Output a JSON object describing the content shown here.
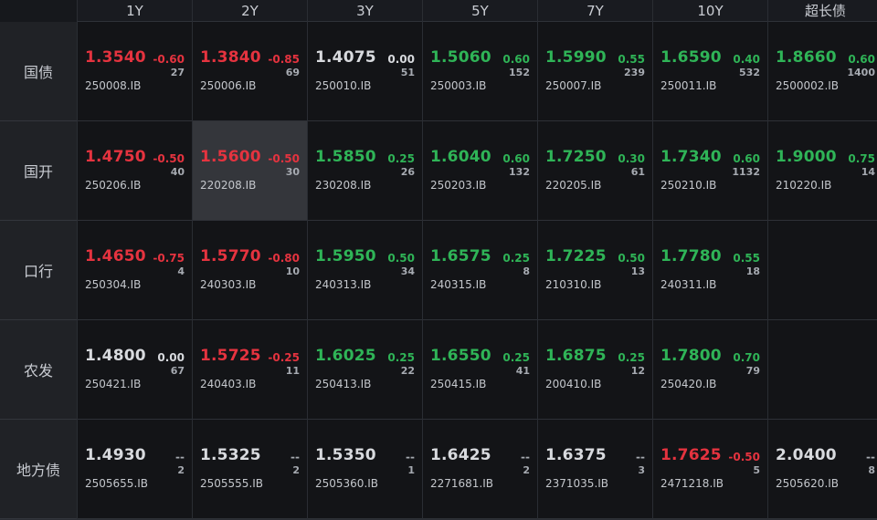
{
  "headers": [
    "1Y",
    "2Y",
    "3Y",
    "5Y",
    "7Y",
    "10Y",
    "超长债"
  ],
  "rows": [
    {
      "label": "国债",
      "cells": [
        {
          "yield": "1.3540",
          "change": "-0.60",
          "vol": "27",
          "code": "250008.IB",
          "dir": "up"
        },
        {
          "yield": "1.3840",
          "change": "-0.85",
          "vol": "69",
          "code": "250006.IB",
          "dir": "up"
        },
        {
          "yield": "1.4075",
          "change": "0.00",
          "vol": "51",
          "code": "250010.IB",
          "dir": "flat"
        },
        {
          "yield": "1.5060",
          "change": "0.60",
          "vol": "152",
          "code": "250003.IB",
          "dir": "down"
        },
        {
          "yield": "1.5990",
          "change": "0.55",
          "vol": "239",
          "code": "250007.IB",
          "dir": "down"
        },
        {
          "yield": "1.6590",
          "change": "0.40",
          "vol": "532",
          "code": "250011.IB",
          "dir": "down"
        },
        {
          "yield": "1.8660",
          "change": "0.60",
          "vol": "1400",
          "code": "2500002.IB",
          "dir": "down"
        }
      ]
    },
    {
      "label": "国开",
      "cells": [
        {
          "yield": "1.4750",
          "change": "-0.50",
          "vol": "40",
          "code": "250206.IB",
          "dir": "up"
        },
        {
          "yield": "1.5600",
          "change": "-0.50",
          "vol": "30",
          "code": "220208.IB",
          "dir": "up",
          "selected": true
        },
        {
          "yield": "1.5850",
          "change": "0.25",
          "vol": "26",
          "code": "230208.IB",
          "dir": "down"
        },
        {
          "yield": "1.6040",
          "change": "0.60",
          "vol": "132",
          "code": "250203.IB",
          "dir": "down"
        },
        {
          "yield": "1.7250",
          "change": "0.30",
          "vol": "61",
          "code": "220205.IB",
          "dir": "down"
        },
        {
          "yield": "1.7340",
          "change": "0.60",
          "vol": "1132",
          "code": "250210.IB",
          "dir": "down"
        },
        {
          "yield": "1.9000",
          "change": "0.75",
          "vol": "14",
          "code": "210220.IB",
          "dir": "down"
        }
      ]
    },
    {
      "label": "口行",
      "cells": [
        {
          "yield": "1.4650",
          "change": "-0.75",
          "vol": "4",
          "code": "250304.IB",
          "dir": "up"
        },
        {
          "yield": "1.5770",
          "change": "-0.80",
          "vol": "10",
          "code": "240303.IB",
          "dir": "up"
        },
        {
          "yield": "1.5950",
          "change": "0.50",
          "vol": "34",
          "code": "240313.IB",
          "dir": "down"
        },
        {
          "yield": "1.6575",
          "change": "0.25",
          "vol": "8",
          "code": "240315.IB",
          "dir": "down"
        },
        {
          "yield": "1.7225",
          "change": "0.50",
          "vol": "13",
          "code": "210310.IB",
          "dir": "down"
        },
        {
          "yield": "1.7780",
          "change": "0.55",
          "vol": "18",
          "code": "240311.IB",
          "dir": "down"
        },
        null
      ]
    },
    {
      "label": "农发",
      "cells": [
        {
          "yield": "1.4800",
          "change": "0.00",
          "vol": "67",
          "code": "250421.IB",
          "dir": "flat"
        },
        {
          "yield": "1.5725",
          "change": "-0.25",
          "vol": "11",
          "code": "240403.IB",
          "dir": "up"
        },
        {
          "yield": "1.6025",
          "change": "0.25",
          "vol": "22",
          "code": "250413.IB",
          "dir": "down"
        },
        {
          "yield": "1.6550",
          "change": "0.25",
          "vol": "41",
          "code": "250415.IB",
          "dir": "down"
        },
        {
          "yield": "1.6875",
          "change": "0.25",
          "vol": "12",
          "code": "200410.IB",
          "dir": "down"
        },
        {
          "yield": "1.7800",
          "change": "0.70",
          "vol": "79",
          "code": "250420.IB",
          "dir": "down"
        },
        null
      ]
    },
    {
      "label": "地方债",
      "cells": [
        {
          "yield": "1.4930",
          "change": "--",
          "vol": "2",
          "code": "2505655.IB",
          "dir": "flat"
        },
        {
          "yield": "1.5325",
          "change": "--",
          "vol": "2",
          "code": "2505555.IB",
          "dir": "flat"
        },
        {
          "yield": "1.5350",
          "change": "--",
          "vol": "1",
          "code": "2505360.IB",
          "dir": "flat"
        },
        {
          "yield": "1.6425",
          "change": "--",
          "vol": "2",
          "code": "2271681.IB",
          "dir": "flat"
        },
        {
          "yield": "1.6375",
          "change": "--",
          "vol": "3",
          "code": "2371035.IB",
          "dir": "flat"
        },
        {
          "yield": "1.7625",
          "change": "-0.50",
          "vol": "5",
          "code": "2471218.IB",
          "dir": "up"
        },
        {
          "yield": "2.0400",
          "change": "--",
          "vol": "8",
          "code": "2505620.IB",
          "dir": "flat"
        }
      ]
    }
  ],
  "colors": {
    "up": "#e5333f",
    "down": "#2fb457",
    "flat": "#d8dade"
  }
}
